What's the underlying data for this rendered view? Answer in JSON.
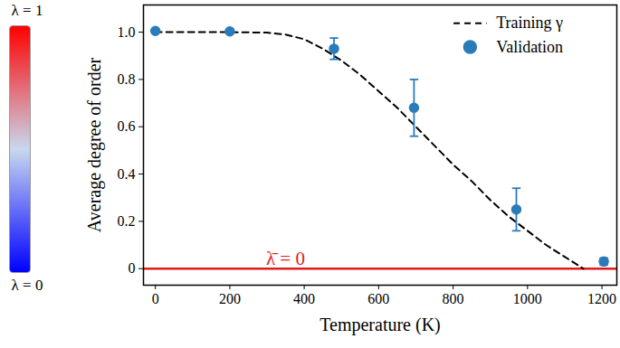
{
  "chart_data": {
    "type": "line",
    "xlabel": "Temperature (K)",
    "ylabel": "Average degree of order",
    "xlim": [
      -32,
      1240
    ],
    "ylim": [
      -0.07,
      1.115
    ],
    "xticks": [
      0,
      200,
      400,
      600,
      800,
      1000,
      1200
    ],
    "yticks": [
      0,
      0.2,
      0.4,
      0.6,
      0.8,
      {
        "value": 1,
        "label": "1.0"
      }
    ],
    "grid": false,
    "legend": "top-right",
    "series": [
      {
        "name": "Training γ",
        "type": "line",
        "line_style": "dashed",
        "color": "#000000",
        "x": [
          0,
          100,
          200,
          300,
          350,
          400,
          450,
          500,
          550,
          600,
          650,
          700,
          750,
          800,
          850,
          900,
          950,
          1000,
          1050,
          1100,
          1150
        ],
        "values": [
          1.0,
          1.0,
          1.0,
          0.998,
          0.99,
          0.97,
          0.93,
          0.88,
          0.82,
          0.75,
          0.68,
          0.6,
          0.52,
          0.44,
          0.37,
          0.29,
          0.22,
          0.16,
          0.1,
          0.05,
          0.0
        ]
      },
      {
        "name": "Validation",
        "type": "scatter",
        "marker": "circle",
        "color": "#2b7bba",
        "x": [
          0,
          200,
          480,
          695,
          970,
          1205
        ],
        "values": [
          1.005,
          1.003,
          0.93,
          0.68,
          0.25,
          0.03
        ],
        "errors": [
          0,
          0,
          0.045,
          0.12,
          0.09,
          0.015
        ]
      }
    ],
    "reference_lines": [
      {
        "y": 0,
        "label": "λ̄ = 0",
        "color": "#e31a1c"
      }
    ],
    "colorbar": {
      "lim": [
        0,
        1
      ],
      "top_label": "λ = 1",
      "bottom_label": "λ = 0",
      "colors": [
        "#0000ff",
        "#c8d8ee",
        "#ff0000"
      ]
    }
  }
}
